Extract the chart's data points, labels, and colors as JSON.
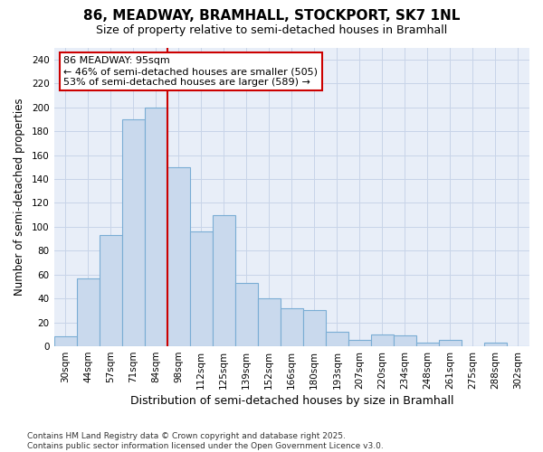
{
  "title1": "86, MEADWAY, BRAMHALL, STOCKPORT, SK7 1NL",
  "title2": "Size of property relative to semi-detached houses in Bramhall",
  "xlabel": "Distribution of semi-detached houses by size in Bramhall",
  "ylabel": "Number of semi-detached properties",
  "categories": [
    "30sqm",
    "44sqm",
    "57sqm",
    "71sqm",
    "84sqm",
    "98sqm",
    "112sqm",
    "125sqm",
    "139sqm",
    "152sqm",
    "166sqm",
    "180sqm",
    "193sqm",
    "207sqm",
    "220sqm",
    "234sqm",
    "248sqm",
    "261sqm",
    "275sqm",
    "288sqm",
    "302sqm"
  ],
  "values": [
    8,
    57,
    93,
    190,
    200,
    150,
    96,
    110,
    53,
    40,
    32,
    30,
    12,
    5,
    10,
    9,
    3,
    5,
    0,
    3,
    0
  ],
  "bar_color": "#c9d9ed",
  "bar_edge_color": "#7aadd4",
  "vline_color": "#cc0000",
  "annotation_text": "86 MEADWAY: 95sqm\n← 46% of semi-detached houses are smaller (505)\n53% of semi-detached houses are larger (589) →",
  "annotation_box_facecolor": "white",
  "annotation_box_edgecolor": "#cc0000",
  "ylim": [
    0,
    250
  ],
  "yticks": [
    0,
    20,
    40,
    60,
    80,
    100,
    120,
    140,
    160,
    180,
    200,
    220,
    240
  ],
  "grid_color": "#c8d4e8",
  "background_color": "#ffffff",
  "plot_bg_color": "#e8eef8",
  "footer": "Contains HM Land Registry data © Crown copyright and database right 2025.\nContains public sector information licensed under the Open Government Licence v3.0.",
  "title_fontsize": 11,
  "subtitle_fontsize": 9,
  "xlabel_fontsize": 9,
  "ylabel_fontsize": 8.5,
  "tick_fontsize": 7.5,
  "footer_fontsize": 6.5,
  "annot_fontsize": 8
}
